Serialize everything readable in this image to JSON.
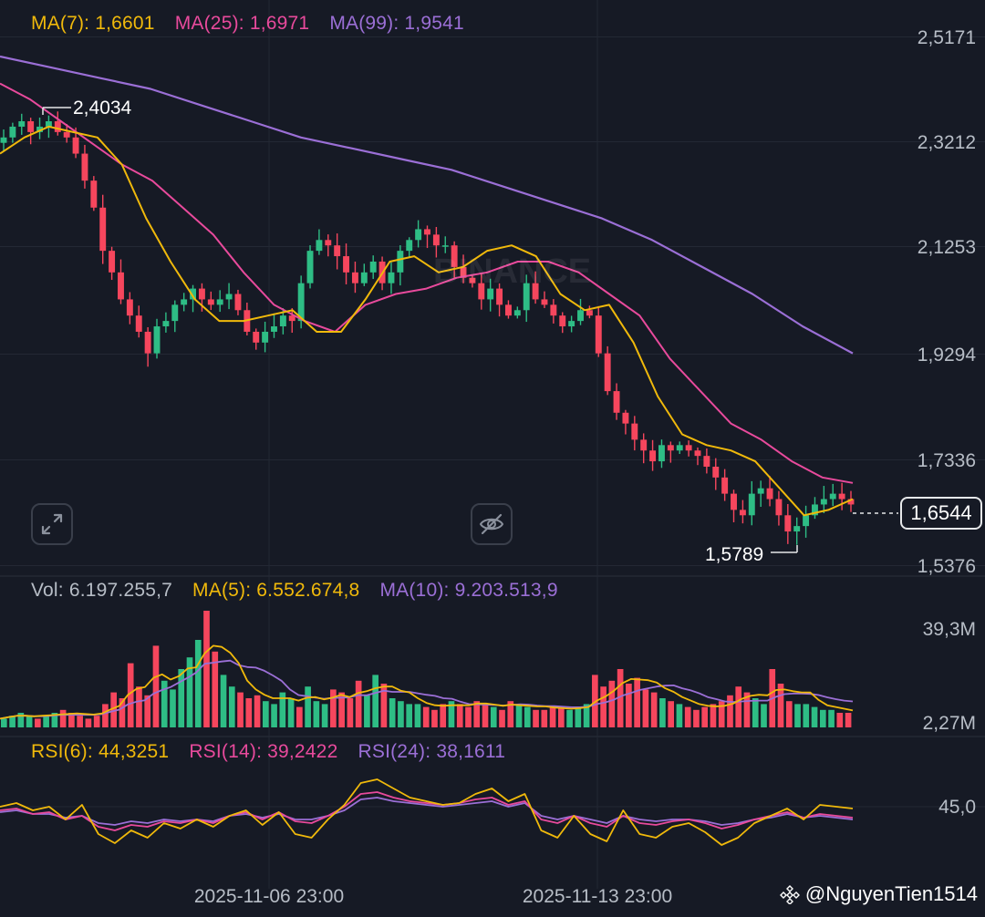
{
  "legend_price": {
    "ma7": "MA(7): 1,6601",
    "ma25": "MA(25): 1,6971",
    "ma99": "MA(99): 1,9541"
  },
  "legend_volume": {
    "vol": "Vol: 6.197.255,7",
    "ma5": "MA(5): 6.552.674,8",
    "ma10": "MA(10): 9.203.513,9"
  },
  "legend_rsi": {
    "rsi6": "RSI(6): 44,3251",
    "rsi14": "RSI(14): 39,2422",
    "rsi24": "RSI(24): 38,1611"
  },
  "current_price": "1,6544",
  "high_label": "2,4034",
  "low_label": "1,5789",
  "watermark_exchange": "BINANCE",
  "watermark_user": "@NguyenTien1514",
  "colors": {
    "background": "#161a25",
    "up": "#2ebd85",
    "down": "#f6465d",
    "ma_short": "#f0b90b",
    "ma_mid": "#e84a9c",
    "ma_long": "#9b6fd6",
    "grid": "#232834",
    "text": "#b7bdc6"
  },
  "chart_data": [
    {
      "type": "candlestick",
      "y_axis_ticks": [
        "2,5171",
        "2,3212",
        "2,1253",
        "1,9294",
        "1,7336",
        "1,5376"
      ],
      "ylim": [
        1.5376,
        2.5171
      ],
      "x_axis_ticks": [
        "2025-11-06 23:00",
        "2025-11-13 23:00"
      ],
      "highest": 2.4034,
      "lowest": 1.5789,
      "last_close": 1.6544,
      "close_path": [
        2.33,
        2.35,
        2.36,
        2.34,
        2.35,
        2.36,
        2.34,
        2.33,
        2.3,
        2.25,
        2.2,
        2.12,
        2.08,
        2.03,
        2.0,
        1.97,
        1.93,
        1.98,
        1.99,
        2.02,
        2.03,
        2.05,
        2.03,
        2.02,
        2.03,
        2.04,
        2.01,
        1.97,
        1.95,
        1.97,
        1.98,
        2.0,
        1.99,
        2.06,
        2.12,
        2.14,
        2.13,
        2.11,
        2.08,
        2.06,
        2.08,
        2.1,
        2.06,
        2.08,
        2.12,
        2.14,
        2.16,
        2.15,
        2.13,
        2.13,
        2.09,
        2.07,
        2.06,
        2.03,
        2.05,
        2.02,
        2.0,
        2.01,
        2.06,
        2.03,
        2.02,
        2.0,
        1.98,
        1.99,
        2.01,
        2.0,
        1.93,
        1.86,
        1.82,
        1.8,
        1.77,
        1.75,
        1.73,
        1.76,
        1.75,
        1.76,
        1.75,
        1.74,
        1.72,
        1.7,
        1.67,
        1.64,
        1.63,
        1.67,
        1.68,
        1.66,
        1.63,
        1.6,
        1.61,
        1.63,
        1.65,
        1.66,
        1.67,
        1.66,
        1.65
      ],
      "ma7_path": [
        2.3,
        2.33,
        2.35,
        2.34,
        2.33,
        2.28,
        2.18,
        2.1,
        2.03,
        1.99,
        1.99,
        2.0,
        2.01,
        1.97,
        1.97,
        2.03,
        2.1,
        2.11,
        2.08,
        2.09,
        2.12,
        2.13,
        2.11,
        2.04,
        2.01,
        2.02,
        1.95,
        1.85,
        1.78,
        1.76,
        1.75,
        1.73,
        1.68,
        1.63,
        1.64,
        1.66
      ],
      "ma25_path": [
        2.43,
        2.4,
        2.36,
        2.32,
        2.28,
        2.25,
        2.2,
        2.15,
        2.08,
        2.02,
        1.99,
        1.97,
        2.02,
        2.04,
        2.05,
        2.07,
        2.08,
        2.1,
        2.1,
        2.08,
        2.04,
        2.0,
        1.92,
        1.86,
        1.8,
        1.77,
        1.73,
        1.7,
        1.69
      ],
      "ma99_path": [
        2.48,
        2.46,
        2.44,
        2.42,
        2.39,
        2.36,
        2.33,
        2.31,
        2.29,
        2.27,
        2.24,
        2.21,
        2.18,
        2.14,
        2.09,
        2.04,
        1.98,
        1.93
      ]
    },
    {
      "type": "bar",
      "name": "volume",
      "y_axis_ticks": [
        "39,3M",
        "2,27M"
      ],
      "ylim": [
        2.27,
        39.3
      ],
      "values_m": [
        3,
        4,
        5,
        4,
        3,
        4,
        5,
        6,
        5,
        4,
        3,
        4,
        8,
        12,
        10,
        22,
        14,
        11,
        28,
        16,
        13,
        20,
        24,
        30,
        40,
        26,
        18,
        14,
        12,
        10,
        11,
        9,
        8,
        12,
        10,
        7,
        14,
        9,
        8,
        13,
        12,
        10,
        16,
        11,
        18,
        15,
        10,
        9,
        8,
        8,
        7,
        6,
        8,
        9,
        8,
        7,
        9,
        8,
        7,
        6,
        9,
        8,
        7,
        6,
        6,
        7,
        7,
        6,
        7,
        8,
        18,
        14,
        16,
        20,
        15,
        17,
        13,
        12,
        10,
        9,
        8,
        7,
        6,
        7,
        8,
        9,
        11,
        14,
        12,
        10,
        8,
        20,
        15,
        9,
        8,
        8,
        7,
        6,
        6,
        5,
        5
      ]
    },
    {
      "type": "line",
      "name": "RSI",
      "y_axis_ticks": [
        "45,0"
      ],
      "rsi6_path": [
        45,
        47,
        43,
        45,
        38,
        46,
        30,
        25,
        32,
        28,
        36,
        33,
        38,
        34,
        40,
        43,
        35,
        42,
        30,
        28,
        38,
        46,
        58,
        60,
        55,
        50,
        48,
        46,
        47,
        52,
        55,
        48,
        52,
        32,
        28,
        40,
        30,
        26,
        43,
        30,
        28,
        34,
        36,
        31,
        24,
        28,
        36,
        40,
        44,
        38,
        46,
        45,
        44
      ],
      "rsi14_path": [
        43,
        44,
        41,
        42,
        38,
        40,
        34,
        32,
        35,
        34,
        37,
        36,
        38,
        36,
        40,
        42,
        38,
        42,
        37,
        36,
        40,
        45,
        52,
        53,
        50,
        48,
        47,
        46,
        47,
        49,
        50,
        46,
        48,
        38,
        36,
        40,
        36,
        34,
        40,
        36,
        35,
        37,
        38,
        36,
        33,
        35,
        38,
        40,
        42,
        39,
        41,
        40,
        39
      ],
      "rsi24_path": [
        42,
        43,
        41,
        41,
        39,
        40,
        36,
        35,
        37,
        36,
        38,
        37,
        38,
        37,
        40,
        41,
        39,
        41,
        38,
        38,
        40,
        43,
        49,
        50,
        48,
        47,
        46,
        45,
        46,
        47,
        48,
        45,
        47,
        40,
        38,
        40,
        38,
        36,
        40,
        38,
        37,
        38,
        38,
        37,
        35,
        36,
        38,
        39,
        41,
        39,
        40,
        39,
        38
      ]
    }
  ]
}
